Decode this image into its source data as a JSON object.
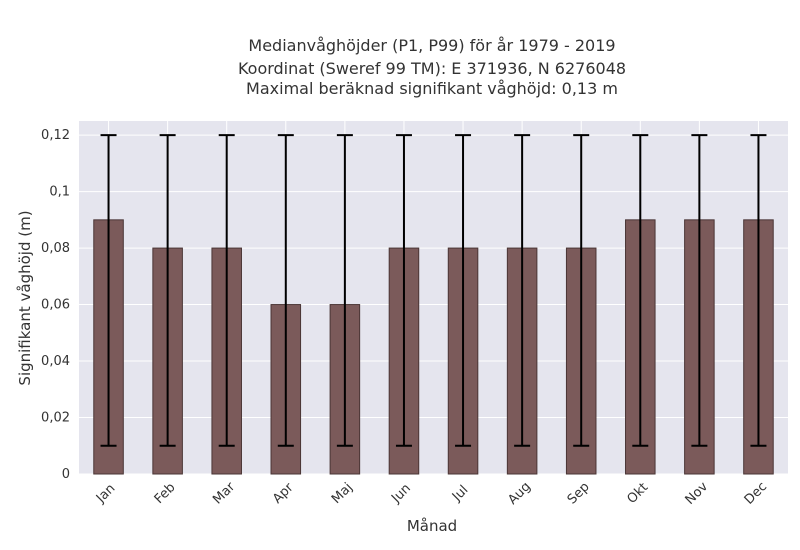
{
  "chart_data": {
    "type": "bar",
    "title_lines": [
      "Medianvåghöjder (P1, P99) för år 1979 - 2019",
      "Koordinat (Sweref 99 TM): E 371936, N 6276048",
      "Maximal beräknad signifikant våghöjd: 0,13 m"
    ],
    "xlabel": "Månad",
    "ylabel": "Signifikant våghöjd (m)",
    "categories": [
      "Jan",
      "Feb",
      "Mar",
      "Apr",
      "Maj",
      "Jun",
      "Jul",
      "Aug",
      "Sep",
      "Okt",
      "Nov",
      "Dec"
    ],
    "values": [
      0.09,
      0.08,
      0.08,
      0.06,
      0.06,
      0.08,
      0.08,
      0.08,
      0.08,
      0.09,
      0.09,
      0.09
    ],
    "p1": [
      0.01,
      0.01,
      0.01,
      0.01,
      0.01,
      0.01,
      0.01,
      0.01,
      0.01,
      0.01,
      0.01,
      0.01
    ],
    "p99": [
      0.12,
      0.12,
      0.12,
      0.12,
      0.12,
      0.12,
      0.12,
      0.12,
      0.12,
      0.12,
      0.12,
      0.12
    ],
    "ylim": [
      0,
      0.125
    ],
    "yticks": [
      0,
      0.02,
      0.04,
      0.06,
      0.08,
      0.1,
      0.12
    ],
    "ytick_labels": [
      "0",
      "0,02",
      "0,04",
      "0,06",
      "0,08",
      "0,1",
      "0,12"
    ],
    "grid": true,
    "colors": {
      "bar_fill": "#7b5a5a",
      "bar_stroke": "#4a3535",
      "error_bar": "#000000",
      "plot_bg": "#e5e5ee",
      "grid": "#ffffff"
    }
  }
}
